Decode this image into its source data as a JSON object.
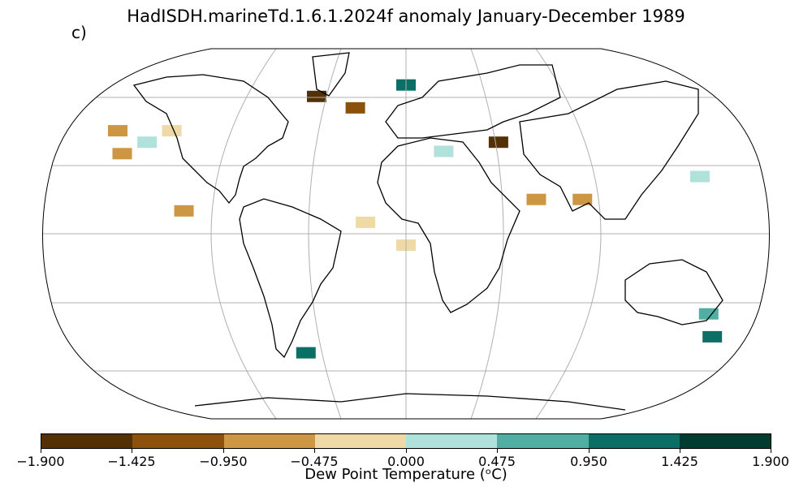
{
  "figure": {
    "title": "HadISDH.marineTd.1.6.1.2024f anomaly January-December 1989",
    "panel_label": "c)"
  },
  "colorbar": {
    "label": "Dew Point Temperature (ᵒC)",
    "ticks": [
      "−1.900",
      "−1.425",
      "−0.950",
      "−0.475",
      "0.000",
      "0.475",
      "0.950",
      "1.425",
      "1.900"
    ],
    "colors": [
      "#543005",
      "#8c510a",
      "#cd9642",
      "#efd9a6",
      "#b0e1db",
      "#50aea3",
      "#0b6f66",
      "#003c30"
    ]
  },
  "map_data": {
    "projection": "Robinson",
    "grid": true,
    "anomaly_cells": [
      {
        "region": "North Pacific",
        "lon": -160,
        "lat": 45,
        "bin": 2
      },
      {
        "region": "North Pacific",
        "lon": -150,
        "lat": 35,
        "bin": 2
      },
      {
        "region": "North Pacific",
        "lon": -140,
        "lat": 40,
        "bin": 4
      },
      {
        "region": "North Pacific",
        "lon": -130,
        "lat": 45,
        "bin": 3
      },
      {
        "region": "Labrador Sea",
        "lon": -55,
        "lat": 60,
        "bin": 0
      },
      {
        "region": "North Atlantic",
        "lon": -30,
        "lat": 55,
        "bin": 1
      },
      {
        "region": "Norwegian Sea",
        "lon": 0,
        "lat": 65,
        "bin": 6
      },
      {
        "region": "Mediterranean",
        "lon": 20,
        "lat": 36,
        "bin": 4
      },
      {
        "region": "Caspian",
        "lon": 50,
        "lat": 40,
        "bin": 0
      },
      {
        "region": "Arabian Sea",
        "lon": 65,
        "lat": 15,
        "bin": 2
      },
      {
        "region": "Bay of Bengal",
        "lon": 88,
        "lat": 15,
        "bin": 2
      },
      {
        "region": "West Pacific",
        "lon": 150,
        "lat": 25,
        "bin": 4
      },
      {
        "region": "Tasman Sea",
        "lon": 160,
        "lat": -35,
        "bin": 5
      },
      {
        "region": "South of NZ",
        "lon": 170,
        "lat": -45,
        "bin": 6
      },
      {
        "region": "Falklands",
        "lon": -58,
        "lat": -52,
        "bin": 6
      },
      {
        "region": "Tropical Atlantic",
        "lon": -20,
        "lat": 5,
        "bin": 3
      },
      {
        "region": "Gulf of Guinea",
        "lon": 0,
        "lat": -5,
        "bin": 3
      },
      {
        "region": "Tropical East Pacific",
        "lon": -110,
        "lat": 10,
        "bin": 2
      }
    ]
  }
}
